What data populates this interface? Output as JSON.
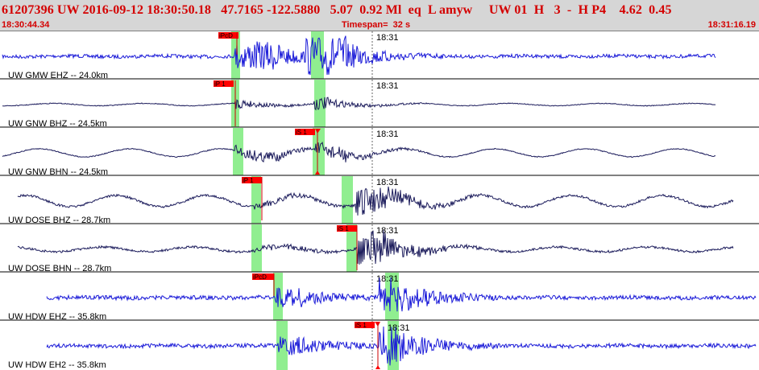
{
  "header": {
    "title": "61207396 UW 2016-09-12 18:30:50.18   47.7165 -122.5880   5.07  0.92 Ml  eq  L amyw     UW 01  H   3  -  H P4    4.62  0.45",
    "start_time": "18:30:44.34",
    "timespan": "Timespan=  32 s",
    "end_time": "18:31:16.19"
  },
  "colors": {
    "header_bg": "#d6d6d6",
    "header_text": "#d40000",
    "trace_blue": "#1a1ad8",
    "trace_dark": "#1c1c5c",
    "pick_bg": "#ff0000",
    "window_green": "#90ee90"
  },
  "traces": [
    {
      "label": "UW GMW EHZ -- 24.0km",
      "minute_tick": "18:31",
      "pick": "iPcD",
      "color_key": "trace_blue"
    },
    {
      "label": "UW GNW BHZ -- 24.5km",
      "minute_tick": "18:31",
      "pick": "iP 1",
      "color_key": "trace_dark"
    },
    {
      "label": "UW GNW BHN -- 24.5km",
      "minute_tick": "18:31",
      "pick": "iS 1",
      "color_key": "trace_dark"
    },
    {
      "label": "UW DOSE BHZ -- 28.7km",
      "minute_tick": "18:31",
      "pick": "iP 1",
      "color_key": "trace_dark"
    },
    {
      "label": "UW DOSE BHN -- 28.7km",
      "minute_tick": "18:31",
      "pick": "iS 1",
      "color_key": "trace_dark"
    },
    {
      "label": "UW HDW EHZ -- 35.8km",
      "minute_tick": "18:31",
      "pick": "iPcD",
      "color_key": "trace_blue"
    },
    {
      "label": "UW HDW EH2 -- 35.8km",
      "minute_tick": "18:31",
      "pick": "iS 1",
      "color_key": "trace_blue"
    }
  ]
}
